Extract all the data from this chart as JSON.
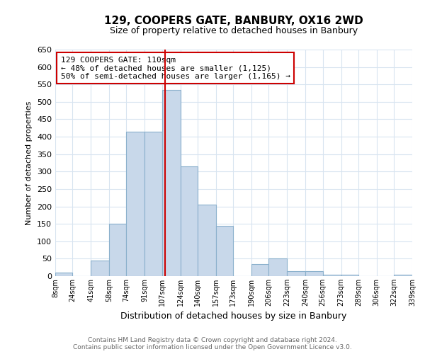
{
  "title": "129, COOPERS GATE, BANBURY, OX16 2WD",
  "subtitle": "Size of property relative to detached houses in Banbury",
  "xlabel": "Distribution of detached houses by size in Banbury",
  "ylabel": "Number of detached properties",
  "bin_labels": [
    "8sqm",
    "24sqm",
    "41sqm",
    "58sqm",
    "74sqm",
    "91sqm",
    "107sqm",
    "124sqm",
    "140sqm",
    "157sqm",
    "173sqm",
    "190sqm",
    "206sqm",
    "223sqm",
    "240sqm",
    "256sqm",
    "273sqm",
    "289sqm",
    "306sqm",
    "322sqm",
    "339sqm"
  ],
  "bin_edges": [
    8,
    24,
    41,
    58,
    74,
    91,
    107,
    124,
    140,
    157,
    173,
    190,
    206,
    223,
    240,
    256,
    273,
    289,
    306,
    322,
    339
  ],
  "bar_heights": [
    10,
    0,
    45,
    150,
    415,
    415,
    535,
    315,
    205,
    145,
    0,
    35,
    50,
    15,
    15,
    5,
    5,
    0,
    0,
    5
  ],
  "bar_color": "#c8d8ea",
  "bar_edgecolor": "#8ab0cc",
  "vline_x": 110,
  "vline_color": "#cc0000",
  "annotation_text": "129 COOPERS GATE: 110sqm\n← 48% of detached houses are smaller (1,125)\n50% of semi-detached houses are larger (1,165) →",
  "annotation_box_edgecolor": "#cc0000",
  "ylim": [
    0,
    650
  ],
  "yticks": [
    0,
    50,
    100,
    150,
    200,
    250,
    300,
    350,
    400,
    450,
    500,
    550,
    600,
    650
  ],
  "footer_line1": "Contains HM Land Registry data © Crown copyright and database right 2024.",
  "footer_line2": "Contains public sector information licensed under the Open Government Licence v3.0.",
  "background_color": "#ffffff",
  "grid_color": "#d8e4f0",
  "title_fontsize": 11,
  "subtitle_fontsize": 9,
  "ylabel_fontsize": 8,
  "xlabel_fontsize": 9,
  "ytick_fontsize": 8,
  "xtick_fontsize": 7,
  "annot_fontsize": 8,
  "footer_fontsize": 6.5
}
